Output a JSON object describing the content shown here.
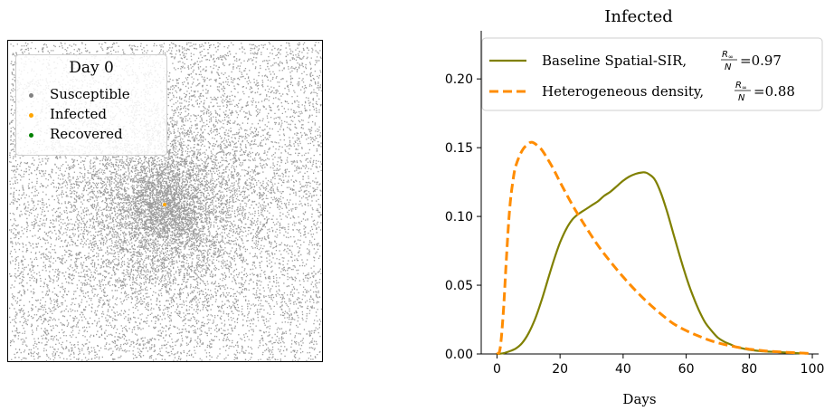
{
  "chart_data": [
    {
      "type": "scatter",
      "legend": {
        "title": "Day 0",
        "placement": "top-left",
        "entries": [
          {
            "label": "Susceptible",
            "color": "#808080"
          },
          {
            "label": "Infected",
            "color": "#ffa500"
          },
          {
            "label": "Recovered",
            "color": "#008000"
          }
        ]
      },
      "axes_visible": false
    },
    {
      "type": "line",
      "title": "Infected",
      "xlabel": "Days",
      "ylabel": "",
      "xlim": [
        -5,
        102
      ],
      "ylim": [
        0,
        0.235
      ],
      "xticks": [
        "0",
        "20",
        "40",
        "60",
        "80",
        "100"
      ],
      "yticks": [
        "0.00",
        "0.05",
        "0.10",
        "0.15",
        "0.20"
      ],
      "legend_placement": "top",
      "series": [
        {
          "name": "Baseline Spatial-SIR, R∞/N =0.97",
          "label_text": "Baseline Spatial-SIR,",
          "ratio": "=0.97",
          "color": "#808000",
          "style": "solid",
          "x": [
            0,
            2,
            4,
            6,
            8,
            10,
            12,
            14,
            16,
            18,
            20,
            22,
            24,
            26,
            28,
            30,
            32,
            34,
            36,
            38,
            40,
            42,
            44,
            46,
            47,
            48,
            50,
            52,
            54,
            56,
            58,
            60,
            62,
            64,
            66,
            68,
            70,
            72,
            74,
            76,
            78,
            80,
            84,
            88,
            92,
            96,
            98
          ],
          "y": [
            0.0,
            0.0005,
            0.002,
            0.004,
            0.008,
            0.015,
            0.025,
            0.038,
            0.053,
            0.068,
            0.081,
            0.091,
            0.098,
            0.102,
            0.105,
            0.108,
            0.111,
            0.115,
            0.118,
            0.122,
            0.126,
            0.129,
            0.131,
            0.132,
            0.132,
            0.131,
            0.127,
            0.117,
            0.103,
            0.087,
            0.071,
            0.056,
            0.043,
            0.032,
            0.023,
            0.017,
            0.012,
            0.009,
            0.007,
            0.005,
            0.004,
            0.003,
            0.002,
            0.0015,
            0.001,
            0.0005,
            0.0003
          ]
        },
        {
          "name": "Heterogeneous density, R∞/N =0.88",
          "label_text": "Heterogeneous density,",
          "ratio": "=0.88",
          "color": "#ff8c00",
          "style": "dashed",
          "x": [
            0,
            1,
            2,
            3,
            4,
            5,
            6,
            8,
            10,
            11,
            12,
            14,
            16,
            18,
            20,
            24,
            28,
            32,
            36,
            40,
            44,
            48,
            52,
            56,
            60,
            64,
            68,
            72,
            76,
            80,
            84,
            88,
            92,
            96,
            99
          ],
          "y": [
            0.0,
            0.004,
            0.03,
            0.07,
            0.105,
            0.125,
            0.137,
            0.148,
            0.153,
            0.154,
            0.153,
            0.149,
            0.142,
            0.134,
            0.125,
            0.108,
            0.093,
            0.079,
            0.067,
            0.056,
            0.046,
            0.037,
            0.029,
            0.022,
            0.017,
            0.013,
            0.0095,
            0.007,
            0.005,
            0.0035,
            0.0025,
            0.0017,
            0.0012,
            0.0007,
            0.0004
          ]
        }
      ]
    }
  ]
}
